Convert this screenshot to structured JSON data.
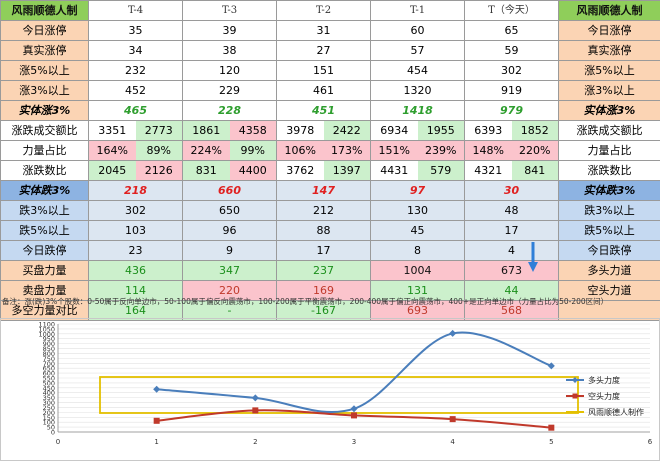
{
  "brand": "风雨顺德人制",
  "columns": [
    "T-4",
    "T-3",
    "T-2",
    "T-1",
    "T（今天）"
  ],
  "rows_up": [
    {
      "label": "今日涨停",
      "values": [
        "35",
        "39",
        "31",
        "60",
        "65"
      ]
    },
    {
      "label": "真实涨停",
      "values": [
        "34",
        "38",
        "27",
        "57",
        "59"
      ]
    },
    {
      "label": "涨5%以上",
      "values": [
        "232",
        "120",
        "151",
        "454",
        "302"
      ]
    },
    {
      "label": "涨3%以上",
      "values": [
        "452",
        "229",
        "461",
        "1320",
        "919"
      ]
    }
  ],
  "sum_up": {
    "label": "实体涨3%",
    "values": [
      "465",
      "228",
      "451",
      "1418",
      "979"
    ]
  },
  "ratio_rows": [
    {
      "label": "涨跌成交额比",
      "pairs": [
        [
          "3351",
          "2773"
        ],
        [
          "1861",
          "4358"
        ],
        [
          "3978",
          "2422"
        ],
        [
          "6934",
          "1955"
        ],
        [
          "6393",
          "1852"
        ]
      ]
    },
    {
      "label": "力量占比",
      "pairs": [
        [
          "164%",
          "89%"
        ],
        [
          "224%",
          "99%"
        ],
        [
          "106%",
          "173%"
        ],
        [
          "151%",
          "239%"
        ],
        [
          "148%",
          "220%"
        ]
      ]
    },
    {
      "label": "涨跌数比",
      "pairs": [
        [
          "2045",
          "2126"
        ],
        [
          "831",
          "4400"
        ],
        [
          "3762",
          "1397"
        ],
        [
          "4431",
          "579"
        ],
        [
          "4321",
          "841"
        ]
      ]
    }
  ],
  "sum_down": {
    "label": "实体跌3%",
    "values": [
      "218",
      "660",
      "147",
      "97",
      "30"
    ]
  },
  "rows_down": [
    {
      "label": "跌3%以上",
      "values": [
        "302",
        "650",
        "212",
        "130",
        "48"
      ]
    },
    {
      "label": "跌5%以上",
      "values": [
        "103",
        "96",
        "88",
        "45",
        "17"
      ]
    },
    {
      "label": "今日跌停",
      "values": [
        "23",
        "9",
        "17",
        "8",
        "4"
      ]
    }
  ],
  "force_rows": [
    {
      "label": "买盘力量",
      "right": "多头力道",
      "values": [
        "436",
        "347",
        "237",
        "1004",
        "673"
      ]
    },
    {
      "label": "卖盘力量",
      "right": "空头力道",
      "values": [
        "114",
        "220",
        "169",
        "131",
        "44"
      ]
    },
    {
      "label": "多空力量对比",
      "right": "",
      "values": [
        "164",
        "-",
        "-167",
        "693",
        "568"
      ]
    }
  ],
  "note": "备注：涨(跌)3%个股数：0-50属于反向单边市，50-100属于偏反向震荡市，100-200属于平衡震荡市，200-400属于偏正向震荡市，400+是正向单边市（力量占比为50-200区间）",
  "colors": {
    "bull": "#4a7ebb",
    "bear": "#c0392b",
    "box": "#e3c000"
  },
  "chart_data": {
    "type": "line",
    "x": [
      1,
      2,
      3,
      4,
      5
    ],
    "xlim": [
      0,
      6
    ],
    "xticks": [
      "0",
      "1",
      "2",
      "3",
      "4",
      "5",
      "6"
    ],
    "ylim": [
      0,
      1100
    ],
    "yticks": [
      "0",
      "50",
      "100",
      "150",
      "200",
      "250",
      "300",
      "350",
      "400",
      "450",
      "500",
      "550",
      "600",
      "650",
      "700",
      "750",
      "800",
      "850",
      "900",
      "950",
      "1000",
      "1050",
      "1100"
    ],
    "series": [
      {
        "name": "多头力度",
        "values": [
          436,
          347,
          237,
          1004,
          673
        ]
      },
      {
        "name": "空头力度",
        "values": [
          114,
          220,
          169,
          131,
          44
        ]
      }
    ],
    "legend_extra": "风雨顺德人制作",
    "legend_position": "right"
  }
}
